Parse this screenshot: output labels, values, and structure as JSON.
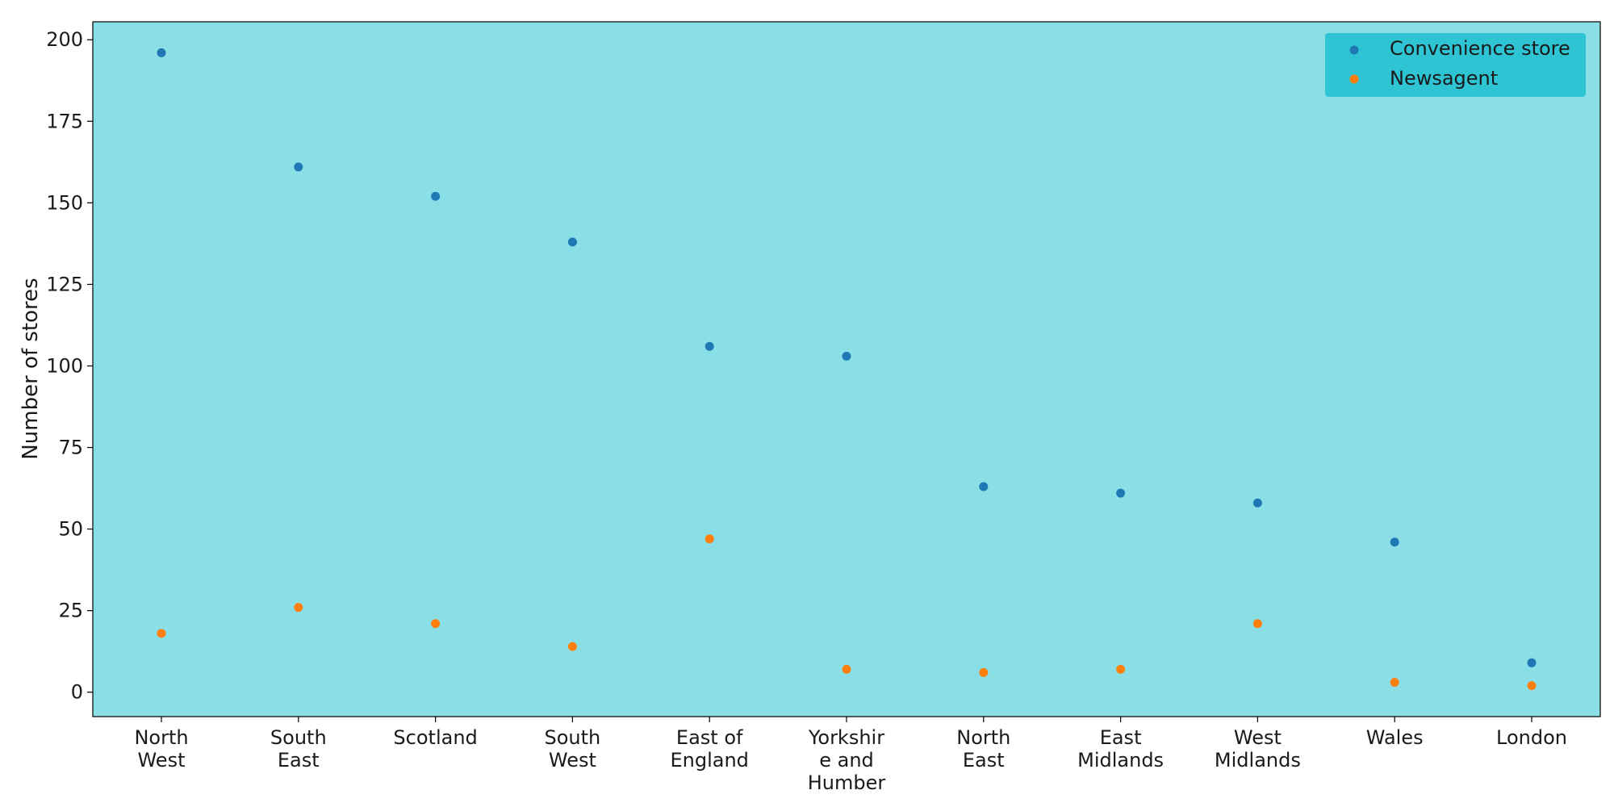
{
  "chart_data": {
    "type": "scatter",
    "title": "",
    "xlabel": "",
    "ylabel": "Number of stores",
    "categories": [
      [
        "North",
        "West"
      ],
      [
        "South",
        "East"
      ],
      [
        "Scotland"
      ],
      [
        "South",
        "West"
      ],
      [
        "East of",
        "England"
      ],
      [
        "Yorkshir",
        "e and",
        "Humber"
      ],
      [
        "North",
        "East"
      ],
      [
        "East",
        "Midlands"
      ],
      [
        "West",
        "Midlands"
      ],
      [
        "Wales"
      ],
      [
        "London"
      ]
    ],
    "series": [
      {
        "name": "Convenience store",
        "color": "#1f77b4",
        "values": [
          196,
          161,
          152,
          138,
          106,
          103,
          63,
          61,
          58,
          46,
          9
        ]
      },
      {
        "name": "Newsagent",
        "color": "#ff7f0e",
        "values": [
          18,
          26,
          21,
          14,
          47,
          7,
          6,
          7,
          21,
          3,
          2
        ]
      }
    ],
    "ylim": [
      -7.5,
      205.5
    ],
    "yticks": [
      0,
      25,
      50,
      75,
      100,
      125,
      150,
      175,
      200
    ],
    "grid": false,
    "legend_position": "top-right",
    "plot_background": "#8adfe6",
    "legend_background": "#2ec4d3"
  }
}
